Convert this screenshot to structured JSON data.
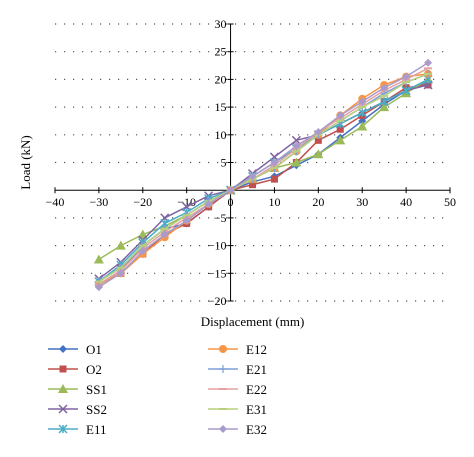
{
  "chart_data": {
    "type": "line",
    "title": "",
    "xlabel": "Displacement (mm)",
    "ylabel": "Load (kN)",
    "xlim": [
      -40,
      50
    ],
    "ylim": [
      -20,
      30
    ],
    "xticks": [
      -40,
      -30,
      -20,
      -10,
      0,
      10,
      20,
      30,
      40,
      50
    ],
    "yticks": [
      -20,
      -15,
      -10,
      -5,
      0,
      5,
      10,
      15,
      20,
      25,
      30
    ],
    "grid": "dotted horizontal",
    "legend_position": "bottom",
    "series": [
      {
        "name": "O1",
        "color": "#4472c4",
        "marker": "diamond",
        "x": [
          -30,
          -25,
          -20,
          -15,
          -10,
          -5,
          0,
          5,
          10,
          15,
          20,
          25,
          30,
          35,
          40,
          45
        ],
        "y": [
          -17,
          -14.5,
          -10,
          -7,
          -6,
          -3,
          0,
          1.5,
          2.5,
          4.5,
          6.5,
          9.5,
          12.5,
          15.5,
          18,
          19.5
        ]
      },
      {
        "name": "O2",
        "color": "#c0504d",
        "marker": "square",
        "x": [
          -30,
          -25,
          -20,
          -15,
          -10,
          -5,
          0,
          5,
          10,
          15,
          20,
          25,
          30,
          35,
          40,
          45
        ],
        "y": [
          -17,
          -15,
          -11.5,
          -8,
          -6,
          -3,
          0,
          1,
          2,
          5,
          9,
          11,
          13.5,
          16,
          18.5,
          19
        ]
      },
      {
        "name": "SS1",
        "color": "#9bbb59",
        "marker": "triangle",
        "x": [
          -30,
          -25,
          -20,
          -15,
          -10,
          -5,
          0,
          5,
          10,
          15,
          20,
          25,
          30,
          35,
          40,
          45
        ],
        "y": [
          -12.5,
          -10,
          -8,
          -6.5,
          -4.5,
          -2,
          0,
          2,
          4,
          5,
          6.5,
          9,
          11.5,
          15,
          17.5,
          20
        ]
      },
      {
        "name": "SS2",
        "color": "#8064a2",
        "marker": "x",
        "x": [
          -30,
          -25,
          -20,
          -15,
          -10,
          -5,
          0,
          5,
          10,
          15,
          20,
          25,
          30,
          35,
          40,
          45
        ],
        "y": [
          -16,
          -13,
          -9,
          -5,
          -3,
          -1,
          0,
          3,
          6,
          9,
          10,
          12,
          14,
          16,
          18,
          19
        ]
      },
      {
        "name": "E11",
        "color": "#4bacc6",
        "marker": "star",
        "x": [
          -30,
          -25,
          -20,
          -15,
          -10,
          -5,
          0,
          5,
          10,
          15,
          20,
          25,
          30,
          35,
          40,
          45
        ],
        "y": [
          -16.5,
          -13.5,
          -9.5,
          -6,
          -4,
          -1.5,
          0,
          2.5,
          5,
          7.5,
          10,
          12,
          14,
          16,
          18,
          20
        ]
      },
      {
        "name": "E12",
        "color": "#f79646",
        "marker": "circle",
        "x": [
          -30,
          -25,
          -20,
          -15,
          -10,
          -5,
          0,
          5,
          10,
          15,
          20,
          25,
          30,
          35,
          40,
          45
        ],
        "y": [
          -17,
          -15,
          -11.5,
          -8.5,
          -5.5,
          -2.5,
          0,
          2,
          4,
          7,
          10,
          13.5,
          16.5,
          19,
          20.5,
          21
        ]
      },
      {
        "name": "E21",
        "color": "#7f9fd8",
        "marker": "plus",
        "x": [
          -30,
          -25,
          -20,
          -15,
          -10,
          -5,
          0,
          5,
          10,
          15,
          20,
          25,
          30,
          35,
          40,
          45
        ],
        "y": [
          -16.5,
          -14,
          -10,
          -7,
          -4.5,
          -2,
          0,
          2,
          4,
          7,
          10,
          12.5,
          15,
          17.5,
          19.5,
          21
        ]
      },
      {
        "name": "E22",
        "color": "#e6a0a0",
        "marker": "dash",
        "x": [
          -30,
          -25,
          -20,
          -15,
          -10,
          -5,
          0,
          5,
          10,
          15,
          20,
          25,
          30,
          35,
          40,
          45
        ],
        "y": [
          -17,
          -14.5,
          -10.5,
          -7.5,
          -5,
          -2.5,
          0,
          2,
          4.5,
          7.5,
          10.5,
          13,
          15.5,
          18,
          20,
          22
        ]
      },
      {
        "name": "E31",
        "color": "#b8d07c",
        "marker": "dash",
        "x": [
          -30,
          -25,
          -20,
          -15,
          -10,
          -5,
          0,
          5,
          10,
          15,
          20,
          25,
          30,
          35,
          40,
          45
        ],
        "y": [
          -16.5,
          -14,
          -10,
          -7,
          -4.5,
          -2,
          0,
          2,
          4,
          7,
          10,
          12.5,
          15,
          17,
          19.5,
          21
        ]
      },
      {
        "name": "E32",
        "color": "#a99bcc",
        "marker": "diamond",
        "x": [
          -30,
          -25,
          -20,
          -15,
          -10,
          -5,
          0,
          5,
          10,
          15,
          20,
          25,
          30,
          35,
          40,
          45
        ],
        "y": [
          -17.5,
          -15,
          -11,
          -8,
          -5.5,
          -2.5,
          0,
          2.5,
          5,
          8,
          10.5,
          13.5,
          16,
          18.5,
          20.5,
          23
        ]
      }
    ]
  }
}
